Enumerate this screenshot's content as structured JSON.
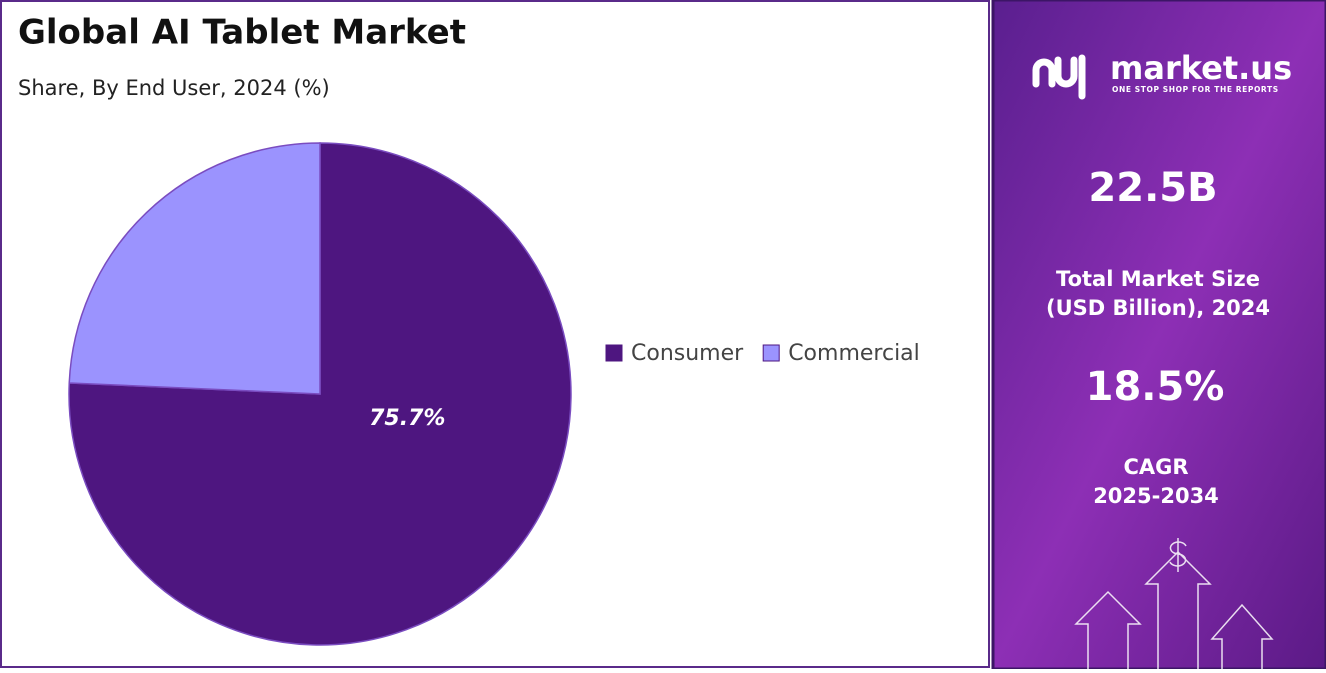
{
  "chart_data": {
    "type": "pie",
    "title": "Global AI Tablet Market",
    "subtitle": "Share, By End User, 2024 (%)",
    "categories": [
      "Consumer",
      "Commercial"
    ],
    "values": [
      75.7,
      24.3
    ],
    "value_labels": [
      "75.7%",
      null
    ],
    "colors": [
      "#4e1680",
      "#9b93fe"
    ],
    "legend": "right"
  },
  "panel": {
    "logo": "market.us",
    "tagline": "ONE STOP SHOP FOR THE REPORTS",
    "stats": [
      {
        "value": "22.5B",
        "label": [
          "Total Market Size",
          "(USD Billion), 2024"
        ]
      },
      {
        "value": "18.5%",
        "label": [
          "CAGR",
          "2025-2034"
        ]
      }
    ]
  }
}
